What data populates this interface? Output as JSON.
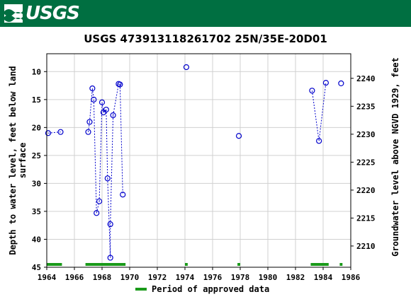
{
  "header": {
    "logo_text": "USGS",
    "logo_icon": "usgs-wave-icon"
  },
  "colors": {
    "header_bg": "#006f41",
    "series": "#0000cc",
    "approved": "#1a9a1a"
  },
  "chart_data": {
    "type": "scatter",
    "title": "USGS 473913118261702 25N/35E-20D01",
    "ylabel_left": "Depth to water level, feet below land surface",
    "ylabel_left_lines": [
      "Depth to water level, feet below land",
      "surface"
    ],
    "ylabel_right": "Groundwater level above NGVD 1929, feet",
    "xlim": [
      1964,
      1986
    ],
    "ylim_left": [
      45,
      6.8
    ],
    "ylim_right": [
      2206.2,
      2244.4
    ],
    "x_ticks": [
      1964,
      1966,
      1968,
      1970,
      1972,
      1974,
      1976,
      1978,
      1980,
      1982,
      1984,
      1986
    ],
    "y_ticks_left": [
      10,
      15,
      20,
      25,
      30,
      35,
      40,
      45
    ],
    "y_ticks_right": [
      2210,
      2215,
      2220,
      2225,
      2230,
      2235,
      2240
    ],
    "grid": true,
    "series": [
      {
        "points": [
          {
            "x": 1964.1,
            "y": 21.0,
            "seg": 0
          },
          {
            "x": 1965.0,
            "y": 20.8,
            "seg": 0
          },
          {
            "x": 1967.0,
            "y": 20.8,
            "seg": 1
          },
          {
            "x": 1967.1,
            "y": 19.0,
            "seg": 1
          },
          {
            "x": 1967.3,
            "y": 13.0,
            "seg": 1
          },
          {
            "x": 1967.4,
            "y": 15.0,
            "seg": 1
          },
          {
            "x": 1967.6,
            "y": 35.3,
            "seg": 1
          },
          {
            "x": 1967.8,
            "y": 33.2,
            "seg": 1
          },
          {
            "x": 1968.0,
            "y": 15.5,
            "seg": 1
          },
          {
            "x": 1968.1,
            "y": 17.3,
            "seg": 1
          },
          {
            "x": 1968.3,
            "y": 16.8,
            "seg": 1
          },
          {
            "x": 1968.4,
            "y": 29.1,
            "seg": 1
          },
          {
            "x": 1968.6,
            "y": 43.3,
            "seg": 1
          },
          {
            "x": 1968.6,
            "y": 37.3,
            "seg": 1
          },
          {
            "x": 1968.8,
            "y": 17.8,
            "seg": 1
          },
          {
            "x": 1969.2,
            "y": 12.2,
            "seg": 1
          },
          {
            "x": 1969.3,
            "y": 12.3,
            "seg": 1
          },
          {
            "x": 1969.5,
            "y": 32.0,
            "seg": 1
          },
          {
            "x": 1974.1,
            "y": 9.2,
            "seg": 2
          },
          {
            "x": 1977.9,
            "y": 21.5,
            "seg": 3
          },
          {
            "x": 1983.2,
            "y": 13.4,
            "seg": 4
          },
          {
            "x": 1983.7,
            "y": 22.4,
            "seg": 4
          },
          {
            "x": 1984.2,
            "y": 12.0,
            "seg": 4
          },
          {
            "x": 1985.3,
            "y": 12.1,
            "seg": 5
          }
        ]
      }
    ],
    "approved_periods": [
      [
        1964.0,
        1965.1
      ],
      [
        1966.8,
        1969.7
      ],
      [
        1974.0,
        1974.2
      ],
      [
        1977.8,
        1978.0
      ],
      [
        1983.1,
        1984.4
      ],
      [
        1985.2,
        1985.4
      ]
    ],
    "legend": {
      "label": "Period of approved data",
      "placement": "bottom-center"
    }
  }
}
